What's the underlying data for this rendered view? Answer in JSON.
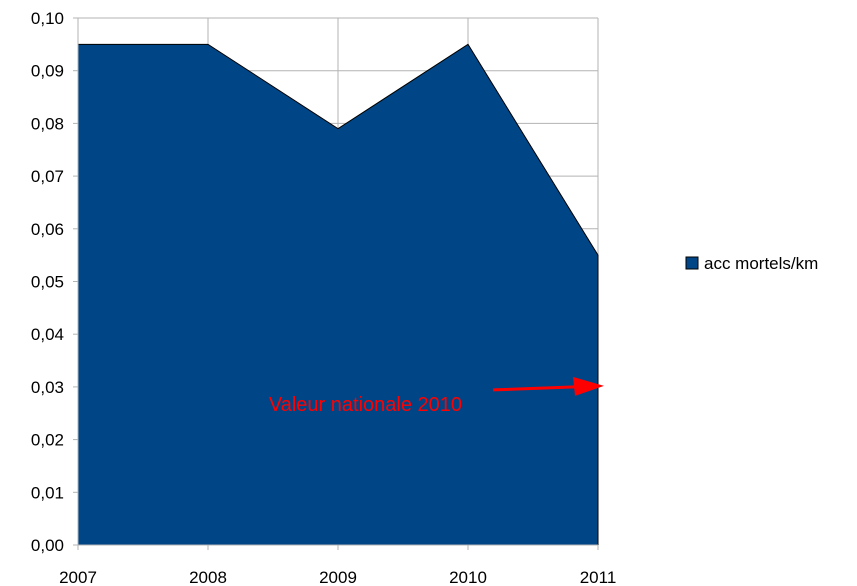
{
  "chart_data": {
    "type": "area",
    "categories": [
      "2007",
      "2008",
      "2009",
      "2010",
      "2011"
    ],
    "series": [
      {
        "name": "acc mortels/km",
        "values": [
          0.095,
          0.095,
          0.079,
          0.095,
          0.055
        ],
        "color": "#004586"
      }
    ],
    "ylim": [
      0,
      0.1
    ],
    "yticks": [
      "0,00",
      "0,01",
      "0,02",
      "0,03",
      "0,04",
      "0,05",
      "0,06",
      "0,07",
      "0,08",
      "0,09",
      "0,10"
    ],
    "grid": true,
    "legend_position": "right",
    "annotation": {
      "text": "Valeur nationale 2010",
      "value": 0.03,
      "color": "#ff0000"
    }
  }
}
